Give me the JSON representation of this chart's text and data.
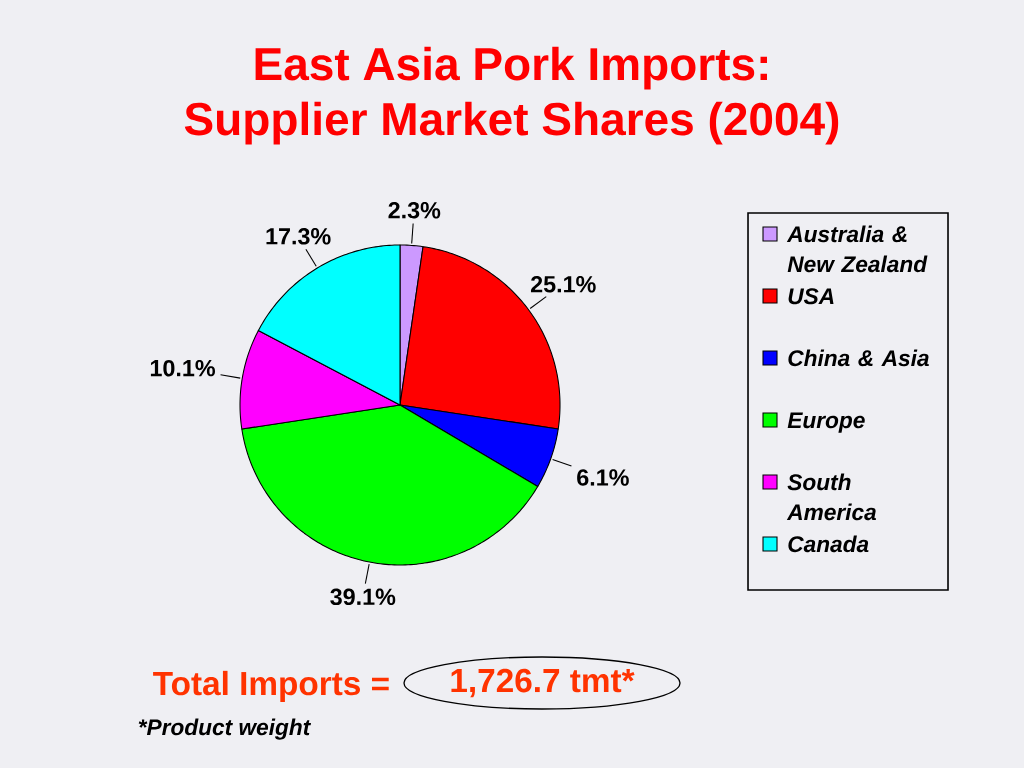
{
  "chart_data": {
    "type": "pie",
    "title": "East Asia Pork Imports:",
    "subtitle": "Supplier Market Shares (2004)",
    "categories": [
      "Australia & New Zealand",
      "USA",
      "China & Asia",
      "Europe",
      "South America",
      "Canada"
    ],
    "values": [
      2.3,
      25.1,
      6.1,
      39.1,
      10.1,
      17.3
    ],
    "colors": [
      "#cc99ff",
      "#ff0000",
      "#0000ff",
      "#00ff00",
      "#ff00ff",
      "#00ffff"
    ],
    "value_labels": [
      "2.3%",
      "25.1%",
      "6.1%",
      "39.1%",
      "10.1%",
      "17.3%"
    ],
    "legend": "right",
    "annotations": [
      "Total Imports =",
      "1,726.7 tmt*",
      "*Product weight"
    ]
  }
}
